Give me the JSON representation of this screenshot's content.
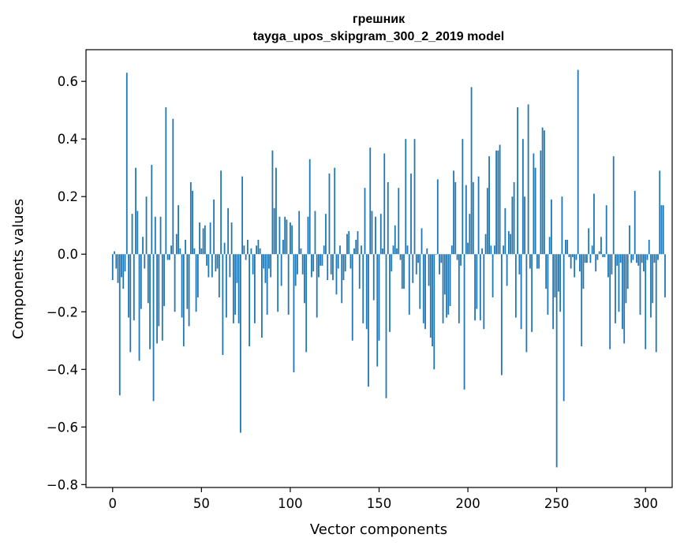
{
  "chart_data": {
    "type": "bar",
    "title": "грешник",
    "subtitle": "tayga_upos_skipgram_300_2_2019 model",
    "xlabel": "Vector components",
    "ylabel": "Components values",
    "xlim": [
      -15,
      315
    ],
    "ylim": [
      -0.81,
      0.71
    ],
    "xticks": [
      0,
      50,
      100,
      150,
      200,
      250,
      300
    ],
    "yticks": [
      -0.8,
      -0.6,
      -0.4,
      -0.2,
      0.0,
      0.2,
      0.4,
      0.6
    ],
    "ytick_labels": [
      "−0.8",
      "−0.6",
      "−0.4",
      "−0.2",
      "0.0",
      "0.2",
      "0.4",
      "0.6"
    ],
    "bar_color": "#1f77b4",
    "grid": false,
    "values": [
      -0.09,
      0.01,
      -0.05,
      -0.1,
      -0.49,
      -0.08,
      -0.12,
      -0.06,
      0.63,
      -0.22,
      -0.34,
      0.14,
      -0.23,
      0.3,
      0.15,
      -0.37,
      -0.19,
      0.06,
      -0.05,
      0.2,
      -0.17,
      -0.33,
      0.31,
      -0.51,
      0.13,
      -0.31,
      -0.25,
      0.13,
      -0.3,
      -0.18,
      0.51,
      -0.02,
      -0.02,
      0.03,
      0.47,
      -0.2,
      0.07,
      0.17,
      0.02,
      -0.22,
      -0.32,
      0.05,
      -0.19,
      -0.25,
      0.25,
      0.22,
      0.02,
      -0.2,
      -0.15,
      0.11,
      0.02,
      0.09,
      0.1,
      -0.04,
      -0.08,
      0.11,
      -0.08,
      0.19,
      -0.06,
      -0.05,
      -0.15,
      0.29,
      -0.35,
      0.04,
      -0.22,
      0.16,
      -0.08,
      0.11,
      -0.24,
      -0.21,
      -0.1,
      -0.24,
      -0.62,
      0.27,
      0.03,
      -0.02,
      0.05,
      -0.32,
      0.02,
      -0.07,
      -0.24,
      0.03,
      0.05,
      0.02,
      -0.29,
      -0.05,
      -0.1,
      -0.21,
      -0.05,
      -0.08,
      0.36,
      0.16,
      0.3,
      -0.2,
      0.13,
      -0.11,
      0.05,
      0.13,
      0.12,
      -0.21,
      0.11,
      0.1,
      -0.41,
      -0.11,
      -0.07,
      0.15,
      0.02,
      -0.07,
      -0.17,
      -0.34,
      0.13,
      0.33,
      -0.08,
      -0.06,
      0.15,
      -0.22,
      -0.08,
      -0.04,
      -0.04,
      0.03,
      0.14,
      -0.09,
      0.28,
      -0.07,
      -0.09,
      0.3,
      -0.14,
      -0.05,
      0.03,
      -0.17,
      -0.09,
      -0.06,
      0.07,
      0.08,
      -0.05,
      -0.3,
      0.02,
      0.05,
      0.08,
      -0.12,
      0.03,
      -0.24,
      0.23,
      -0.26,
      -0.46,
      0.37,
      0.15,
      -0.16,
      0.13,
      -0.39,
      -0.3,
      0.14,
      0.02,
      0.35,
      -0.5,
      0.25,
      -0.27,
      -0.06,
      0.03,
      0.1,
      0.02,
      0.23,
      -0.02,
      -0.12,
      -0.12,
      0.4,
      0.03,
      -0.21,
      0.28,
      -0.1,
      0.4,
      -0.07,
      -0.03,
      -0.19,
      0.09,
      -0.24,
      -0.26,
      0.02,
      -0.11,
      -0.29,
      -0.32,
      -0.4,
      0.0,
      0.26,
      -0.07,
      -0.03,
      -0.24,
      -0.14,
      -0.22,
      -0.21,
      -0.18,
      0.03,
      0.29,
      0.25,
      -0.02,
      -0.24,
      -0.04,
      0.4,
      -0.47,
      0.24,
      0.04,
      0.14,
      0.58,
      0.25,
      -0.23,
      -0.19,
      0.27,
      -0.23,
      0.02,
      -0.26,
      0.07,
      0.23,
      0.34,
      0.03,
      -0.15,
      0.03,
      0.36,
      0.36,
      0.38,
      -0.42,
      0.03,
      0.16,
      -0.11,
      0.08,
      0.07,
      0.2,
      0.25,
      -0.22,
      0.51,
      -0.07,
      -0.26,
      0.4,
      0.2,
      -0.34,
      0.52,
      -0.05,
      -0.27,
      0.35,
      0.3,
      -0.05,
      -0.05,
      0.36,
      0.44,
      0.43,
      -0.12,
      -0.21,
      0.06,
      0.19,
      -0.26,
      -0.15,
      -0.74,
      -0.13,
      -0.2,
      0.2,
      -0.51,
      0.05,
      0.05,
      -0.01,
      -0.05,
      -0.01,
      -0.08,
      -0.02,
      0.64,
      -0.06,
      -0.32,
      -0.12,
      -0.03,
      -0.03,
      0.09,
      -0.03,
      0.03,
      0.21,
      -0.06,
      -0.02,
      0.01,
      0.06,
      -0.01,
      -0.01,
      0.17,
      -0.08,
      -0.33,
      -0.07,
      0.34,
      -0.24,
      -0.04,
      -0.2,
      -0.03,
      -0.26,
      -0.31,
      -0.17,
      -0.12,
      0.1,
      -0.03,
      -0.02,
      0.22,
      -0.03,
      -0.04,
      -0.21,
      -0.03,
      -0.06,
      -0.33,
      -0.02,
      0.05,
      -0.22,
      -0.17,
      -0.03,
      -0.34,
      -0.02,
      0.29,
      0.17,
      0.17,
      -0.15
    ]
  }
}
